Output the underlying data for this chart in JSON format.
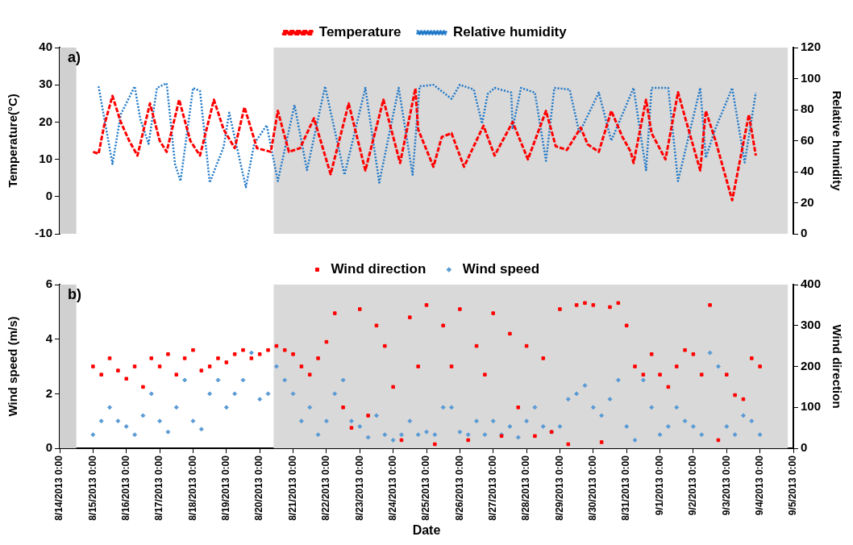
{
  "chart_data": [
    {
      "type": "line",
      "title": "a)",
      "ylabel": "Temperature(°C)",
      "y2label": "Relative humidity",
      "legend": "top",
      "grid": false,
      "tick_labels": "y",
      "xlim": [
        "2013-08-14",
        "2013-09-05"
      ],
      "ylim": [
        -10,
        40
      ],
      "yticks": [
        -10,
        0,
        10,
        20,
        30,
        40
      ],
      "y2lim": [
        0,
        120
      ],
      "y2ticks": [
        0,
        20,
        40,
        60,
        80,
        100,
        120
      ],
      "bands": [
        {
          "axis": "x",
          "from": "2013-08-14",
          "to": "2013-08-14T12:00",
          "color": "#d0d0d0"
        },
        {
          "axis": "x",
          "from": "2013-08-20T10:00",
          "to": "2013-09-04T20:00",
          "color": "#d9d9d9"
        }
      ],
      "series": [
        {
          "name": "Temperature",
          "color": "#ff0000",
          "line_style": "dashed",
          "marker": "none",
          "x": [
            "2013-08-15T00:00",
            "2013-08-15T04:00",
            "2013-08-15T08:00",
            "2013-08-15T14:00",
            "2013-08-15T20:00",
            "2013-08-16T02:00",
            "2013-08-16T08:00",
            "2013-08-16T17:00",
            "2013-08-17T00:00",
            "2013-08-17T05:00",
            "2013-08-17T14:00",
            "2013-08-17T22:00",
            "2013-08-18T05:00",
            "2013-08-18T15:00",
            "2013-08-18T22:00",
            "2013-08-19T06:00",
            "2013-08-19T13:00",
            "2013-08-19T22:00",
            "2013-08-20T08:00",
            "2013-08-20T13:00",
            "2013-08-20T21:00",
            "2013-08-21T05:00",
            "2013-08-21T15:00",
            "2013-08-22T03:00",
            "2013-08-22T16:00",
            "2013-08-23T04:00",
            "2013-08-23T17:00",
            "2013-08-24T05:00",
            "2013-08-24T16:00",
            "2013-08-24T18:00",
            "2013-08-25T05:00",
            "2013-08-25T11:00",
            "2013-08-25T18:00",
            "2013-08-26T03:00",
            "2013-08-26T17:00",
            "2013-08-27T01:00",
            "2013-08-27T14:00",
            "2013-08-28T01:00",
            "2013-08-28T14:00",
            "2013-08-28T21:00",
            "2013-08-29T05:00",
            "2013-08-29T15:00",
            "2013-08-29T20:00",
            "2013-08-30T04:00",
            "2013-08-30T13:00",
            "2013-08-30T21:00",
            "2013-08-31T03:00",
            "2013-08-31T05:00",
            "2013-08-31T14:00",
            "2013-08-31T18:00",
            "2013-09-01T04:00",
            "2013-09-01T13:00",
            "2013-09-01T16:00",
            "2013-09-02T05:00",
            "2013-09-02T09:00",
            "2013-09-02T16:00",
            "2013-09-03T04:00",
            "2013-09-03T16:00",
            "2013-09-03T21:00"
          ],
          "values": [
            12,
            11.5,
            19,
            27,
            20,
            15,
            11,
            25,
            15,
            12,
            26,
            15,
            11,
            26,
            18,
            13,
            24,
            13,
            12,
            23,
            12,
            13,
            21,
            6,
            25,
            7,
            26,
            9,
            29,
            18,
            8,
            16,
            17,
            8,
            19,
            11,
            20,
            10,
            23,
            13.5,
            12.5,
            18.5,
            14,
            12,
            23,
            16,
            12,
            9,
            26,
            17,
            10,
            28,
            24,
            7,
            23,
            15,
            -1,
            22,
            11
          ]
        },
        {
          "name": "Relative humidity",
          "color": "#1f78c8",
          "axis": "y2",
          "line_style": "dotted",
          "marker": "none",
          "x": [
            "2013-08-15T04:00",
            "2013-08-15T14:00",
            "2013-08-15T20:00",
            "2013-08-16T06:00",
            "2013-08-16T10:00",
            "2013-08-16T16:00",
            "2013-08-16T22:00",
            "2013-08-17T05:00",
            "2013-08-17T11:00",
            "2013-08-17T15:00",
            "2013-08-18T00:00",
            "2013-08-18T05:00",
            "2013-08-18T12:00",
            "2013-08-18T22:00",
            "2013-08-19T02:00",
            "2013-08-19T14:00",
            "2013-08-19T20:00",
            "2013-08-20T05:00",
            "2013-08-20T13:00",
            "2013-08-21T01:00",
            "2013-08-21T10:00",
            "2013-08-21T23:00",
            "2013-08-22T13:00",
            "2013-08-23T04:00",
            "2013-08-23T14:00",
            "2013-08-24T04:00",
            "2013-08-24T14:00",
            "2013-08-24T19:00",
            "2013-08-25T05:00",
            "2013-08-25T18:00",
            "2013-08-26T00:00",
            "2013-08-26T10:00",
            "2013-08-26T16:00",
            "2013-08-26T20:00",
            "2013-08-27T01:00",
            "2013-08-27T13:00",
            "2013-08-27T14:00",
            "2013-08-27T20:00",
            "2013-08-28T06:00",
            "2013-08-28T14:00",
            "2013-08-28T20:00",
            "2013-08-29T07:00",
            "2013-08-29T14:00",
            "2013-08-30T04:00",
            "2013-08-30T13:00",
            "2013-08-31T05:00",
            "2013-08-31T14:00",
            "2013-08-31T18:00",
            "2013-09-01T06:00",
            "2013-09-01T13:00",
            "2013-09-02T05:00",
            "2013-09-02T09:00",
            "2013-09-02T16:00",
            "2013-09-03T04:00",
            "2013-09-03T13:00",
            "2013-09-03T21:00"
          ],
          "values": [
            95,
            45,
            77,
            95,
            74,
            58,
            94,
            97,
            45,
            34,
            94,
            92,
            33,
            56,
            78,
            30,
            58,
            70,
            34,
            83,
            41,
            95,
            38,
            94,
            33,
            94,
            38,
            95,
            96,
            87,
            96,
            93,
            71,
            90,
            94,
            91,
            68,
            94,
            91,
            47,
            94,
            93,
            65,
            91,
            60,
            94,
            41,
            94,
            94,
            34,
            94,
            49,
            68,
            94,
            46,
            91
          ]
        }
      ]
    },
    {
      "type": "scatter",
      "title": "b)",
      "xlabel": "Date",
      "ylabel": "Wind speed (m/s)",
      "y2label": "Wind direction",
      "legend": "top",
      "grid": false,
      "xlim": [
        "2013-08-14",
        "2013-09-05"
      ],
      "xticks": [
        {
          "value": "2013-08-14",
          "label": "8/14/2013 0:00"
        },
        {
          "value": "2013-08-15",
          "label": "8/15/2013 0:00"
        },
        {
          "value": "2013-08-16",
          "label": "8/16/2013 0:00"
        },
        {
          "value": "2013-08-17",
          "label": "8/17/2013 0:00"
        },
        {
          "value": "2013-08-18",
          "label": "8/18/2013 0:00"
        },
        {
          "value": "2013-08-19",
          "label": "8/19/2013 0:00"
        },
        {
          "value": "2013-08-20",
          "label": "8/20/2013 0:00"
        },
        {
          "value": "2013-08-21",
          "label": "8/21/2013 0:00"
        },
        {
          "value": "2013-08-22",
          "label": "8/22/2013 0:00"
        },
        {
          "value": "2013-08-23",
          "label": "8/23/2013 0:00"
        },
        {
          "value": "2013-08-24",
          "label": "8/24/2013 0:00"
        },
        {
          "value": "2013-08-25",
          "label": "8/25/2013 0:00"
        },
        {
          "value": "2013-08-26",
          "label": "8/26/2013 0:00"
        },
        {
          "value": "2013-08-27",
          "label": "8/27/2013 0:00"
        },
        {
          "value": "2013-08-28",
          "label": "8/28/2013 0:00"
        },
        {
          "value": "2013-08-29",
          "label": "8/29/2013 0:00"
        },
        {
          "value": "2013-08-30",
          "label": "8/30/2013 0:00"
        },
        {
          "value": "2013-08-31",
          "label": "8/31/2013 0:00"
        },
        {
          "value": "2013-09-01",
          "label": "9/1/2013 0:00"
        },
        {
          "value": "2013-09-02",
          "label": "9/2/2013 0:00"
        },
        {
          "value": "2013-09-03",
          "label": "9/3/2013 0:00"
        },
        {
          "value": "2013-09-04",
          "label": "9/4/2013 0:00"
        },
        {
          "value": "2013-09-05",
          "label": "9/5/2013 0:00"
        }
      ],
      "ylim": [
        0,
        6
      ],
      "yticks": [
        0,
        2,
        4,
        6
      ],
      "y2lim": [
        0,
        400
      ],
      "y2ticks": [
        0,
        100,
        200,
        300,
        400
      ],
      "bands": [
        {
          "axis": "x",
          "from": "2013-08-14",
          "to": "2013-08-14T12:00",
          "color": "#d0d0d0"
        },
        {
          "axis": "x",
          "from": "2013-08-20T10:00",
          "to": "2013-09-04T20:00",
          "color": "#d9d9d9"
        }
      ],
      "series": [
        {
          "name": "Wind direction",
          "color": "#ff0000",
          "axis": "y2",
          "marker": "square",
          "x": [
            "2013-08-15T00:00",
            "2013-08-15T06:00",
            "2013-08-15T12:00",
            "2013-08-15T18:00",
            "2013-08-16T00:00",
            "2013-08-16T06:00",
            "2013-08-16T12:00",
            "2013-08-16T18:00",
            "2013-08-17T00:00",
            "2013-08-17T06:00",
            "2013-08-17T12:00",
            "2013-08-17T18:00",
            "2013-08-18T00:00",
            "2013-08-18T06:00",
            "2013-08-18T12:00",
            "2013-08-18T18:00",
            "2013-08-19T00:00",
            "2013-08-19T06:00",
            "2013-08-19T12:00",
            "2013-08-19T18:00",
            "2013-08-20T00:00",
            "2013-08-20T06:00",
            "2013-08-20T12:00",
            "2013-08-20T18:00",
            "2013-08-21T00:00",
            "2013-08-21T06:00",
            "2013-08-21T12:00",
            "2013-08-21T18:00",
            "2013-08-22T00:00",
            "2013-08-22T06:00",
            "2013-08-22T12:00",
            "2013-08-22T18:00",
            "2013-08-23T00:00",
            "2013-08-23T06:00",
            "2013-08-23T12:00",
            "2013-08-23T18:00",
            "2013-08-24T00:00",
            "2013-08-24T06:00",
            "2013-08-24T12:00",
            "2013-08-24T18:00",
            "2013-08-25T00:00",
            "2013-08-25T06:00",
            "2013-08-25T12:00",
            "2013-08-25T18:00",
            "2013-08-26T00:00",
            "2013-08-26T06:00",
            "2013-08-26T12:00",
            "2013-08-26T18:00",
            "2013-08-27T00:00",
            "2013-08-27T06:00",
            "2013-08-27T12:00",
            "2013-08-27T18:00",
            "2013-08-28T00:00",
            "2013-08-28T06:00",
            "2013-08-28T12:00",
            "2013-08-28T18:00",
            "2013-08-29T00:00",
            "2013-08-29T06:00",
            "2013-08-29T12:00",
            "2013-08-29T18:00",
            "2013-08-30T00:00",
            "2013-08-30T06:00",
            "2013-08-30T12:00",
            "2013-08-30T18:00",
            "2013-08-31T00:00",
            "2013-08-31T06:00",
            "2013-08-31T12:00",
            "2013-08-31T18:00",
            "2013-09-01T00:00",
            "2013-09-01T06:00",
            "2013-09-01T12:00",
            "2013-09-01T18:00",
            "2013-09-02T00:00",
            "2013-09-02T06:00",
            "2013-09-02T12:00",
            "2013-09-02T18:00",
            "2013-09-03T00:00",
            "2013-09-03T06:00",
            "2013-09-03T12:00",
            "2013-09-03T18:00",
            "2013-09-04T00:00"
          ],
          "values": [
            200,
            180,
            220,
            190,
            170,
            200,
            150,
            220,
            200,
            230,
            180,
            220,
            240,
            190,
            200,
            220,
            210,
            230,
            240,
            220,
            230,
            240,
            250,
            240,
            230,
            200,
            180,
            220,
            260,
            330,
            100,
            50,
            340,
            80,
            300,
            250,
            150,
            20,
            320,
            200,
            350,
            10,
            300,
            200,
            340,
            20,
            250,
            180,
            330,
            30,
            280,
            100,
            250,
            30,
            220,
            40,
            340,
            10,
            350,
            355,
            350,
            15,
            345,
            355,
            300,
            200,
            180,
            230,
            180,
            150,
            200,
            240,
            230,
            180,
            350,
            20,
            180,
            130,
            120,
            220,
            200
          ]
        },
        {
          "name": "Wind speed",
          "color": "#5b9bd5",
          "marker": "diamond",
          "x": [
            "2013-08-15T00:00",
            "2013-08-15T06:00",
            "2013-08-15T12:00",
            "2013-08-15T18:00",
            "2013-08-16T00:00",
            "2013-08-16T06:00",
            "2013-08-16T12:00",
            "2013-08-16T18:00",
            "2013-08-17T00:00",
            "2013-08-17T06:00",
            "2013-08-17T12:00",
            "2013-08-17T18:00",
            "2013-08-18T00:00",
            "2013-08-18T06:00",
            "2013-08-18T12:00",
            "2013-08-18T18:00",
            "2013-08-19T00:00",
            "2013-08-19T06:00",
            "2013-08-19T12:00",
            "2013-08-19T18:00",
            "2013-08-20T00:00",
            "2013-08-20T06:00",
            "2013-08-20T12:00",
            "2013-08-20T18:00",
            "2013-08-21T00:00",
            "2013-08-21T06:00",
            "2013-08-21T12:00",
            "2013-08-21T18:00",
            "2013-08-22T00:00",
            "2013-08-22T06:00",
            "2013-08-22T12:00",
            "2013-08-22T18:00",
            "2013-08-23T00:00",
            "2013-08-23T06:00",
            "2013-08-23T12:00",
            "2013-08-23T18:00",
            "2013-08-24T00:00",
            "2013-08-24T06:00",
            "2013-08-24T12:00",
            "2013-08-24T18:00",
            "2013-08-25T00:00",
            "2013-08-25T06:00",
            "2013-08-25T12:00",
            "2013-08-25T18:00",
            "2013-08-26T00:00",
            "2013-08-26T06:00",
            "2013-08-26T12:00",
            "2013-08-26T18:00",
            "2013-08-27T00:00",
            "2013-08-27T06:00",
            "2013-08-27T12:00",
            "2013-08-27T18:00",
            "2013-08-28T00:00",
            "2013-08-28T06:00",
            "2013-08-28T12:00",
            "2013-08-28T18:00",
            "2013-08-29T00:00",
            "2013-08-29T06:00",
            "2013-08-29T12:00",
            "2013-08-29T18:00",
            "2013-08-30T00:00",
            "2013-08-30T06:00",
            "2013-08-30T12:00",
            "2013-08-30T18:00",
            "2013-08-31T00:00",
            "2013-08-31T06:00",
            "2013-08-31T12:00",
            "2013-08-31T18:00",
            "2013-09-01T00:00",
            "2013-09-01T06:00",
            "2013-09-01T12:00",
            "2013-09-01T18:00",
            "2013-09-02T00:00",
            "2013-09-02T06:00",
            "2013-09-02T12:00",
            "2013-09-02T18:00",
            "2013-09-03T00:00",
            "2013-09-03T06:00",
            "2013-09-03T12:00",
            "2013-09-03T18:00",
            "2013-09-04T00:00"
          ],
          "values": [
            0.5,
            1,
            1.5,
            1,
            0.8,
            0.5,
            1.2,
            2,
            1,
            0.6,
            1.5,
            2.5,
            1,
            0.7,
            2,
            2.5,
            1.5,
            2,
            2.5,
            3.5,
            1.8,
            2,
            3,
            2.5,
            2,
            1,
            1.5,
            0.5,
            1,
            2,
            2.5,
            1,
            0.8,
            0.4,
            1.2,
            0.5,
            0.3,
            0.5,
            1,
            0.5,
            0.6,
            0.5,
            1.5,
            1.5,
            0.6,
            0.5,
            1,
            0.5,
            1,
            0.5,
            0.8,
            0.4,
            1,
            1.5,
            0.8,
            0.6,
            0.8,
            1.8,
            2,
            2.3,
            1.5,
            1.2,
            1.8,
            2.5,
            0.8,
            0.3,
            2.5,
            1.5,
            0.5,
            0.8,
            1.5,
            1,
            0.8,
            0.5,
            3.5,
            3,
            0.8,
            0.5,
            1.2,
            1,
            0.5
          ]
        }
      ]
    }
  ]
}
